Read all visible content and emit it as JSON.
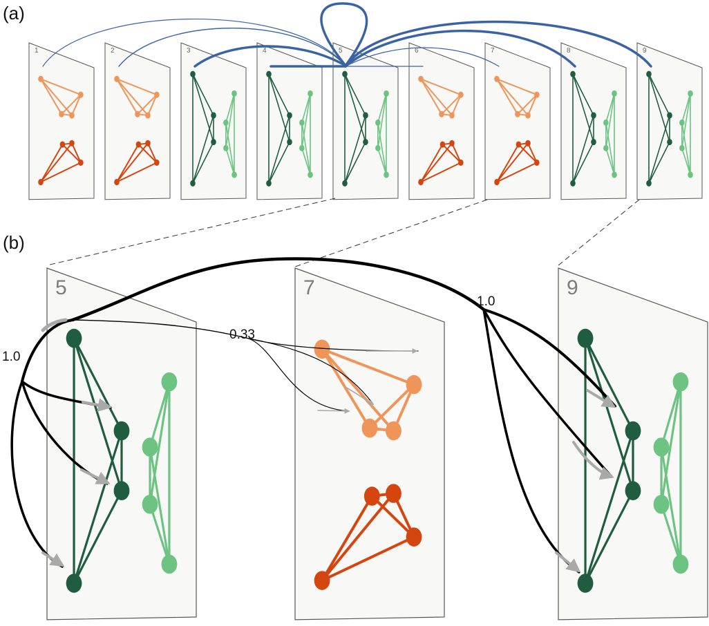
{
  "labels": {
    "panel_a": "(a)",
    "panel_b": "(b)"
  },
  "weights": {
    "w1": "1.0",
    "w2": "0.33",
    "w3": "1.0"
  },
  "colors": {
    "orange_light": "#f0955a",
    "orange_dark": "#d4450f",
    "green_dark": "#1f5c40",
    "green_light": "#6cc382",
    "arc_blue": "#3a63a3",
    "frame_fill": "#f8f8f6",
    "frame_stroke": "#555555",
    "arrow_gray": "#a9a9a9"
  },
  "strip": [
    {
      "num": "1",
      "type": "orange"
    },
    {
      "num": "2",
      "type": "orange"
    },
    {
      "num": "3",
      "type": "green"
    },
    {
      "num": "4",
      "type": "green"
    },
    {
      "num": "5",
      "type": "green"
    },
    {
      "num": "6",
      "type": "orange"
    },
    {
      "num": "7",
      "type": "orange"
    },
    {
      "num": "8",
      "type": "green"
    },
    {
      "num": "9",
      "type": "green"
    }
  ],
  "zoom": [
    {
      "num": "5",
      "type": "green"
    },
    {
      "num": "7",
      "type": "orange"
    },
    {
      "num": "9",
      "type": "green"
    }
  ]
}
